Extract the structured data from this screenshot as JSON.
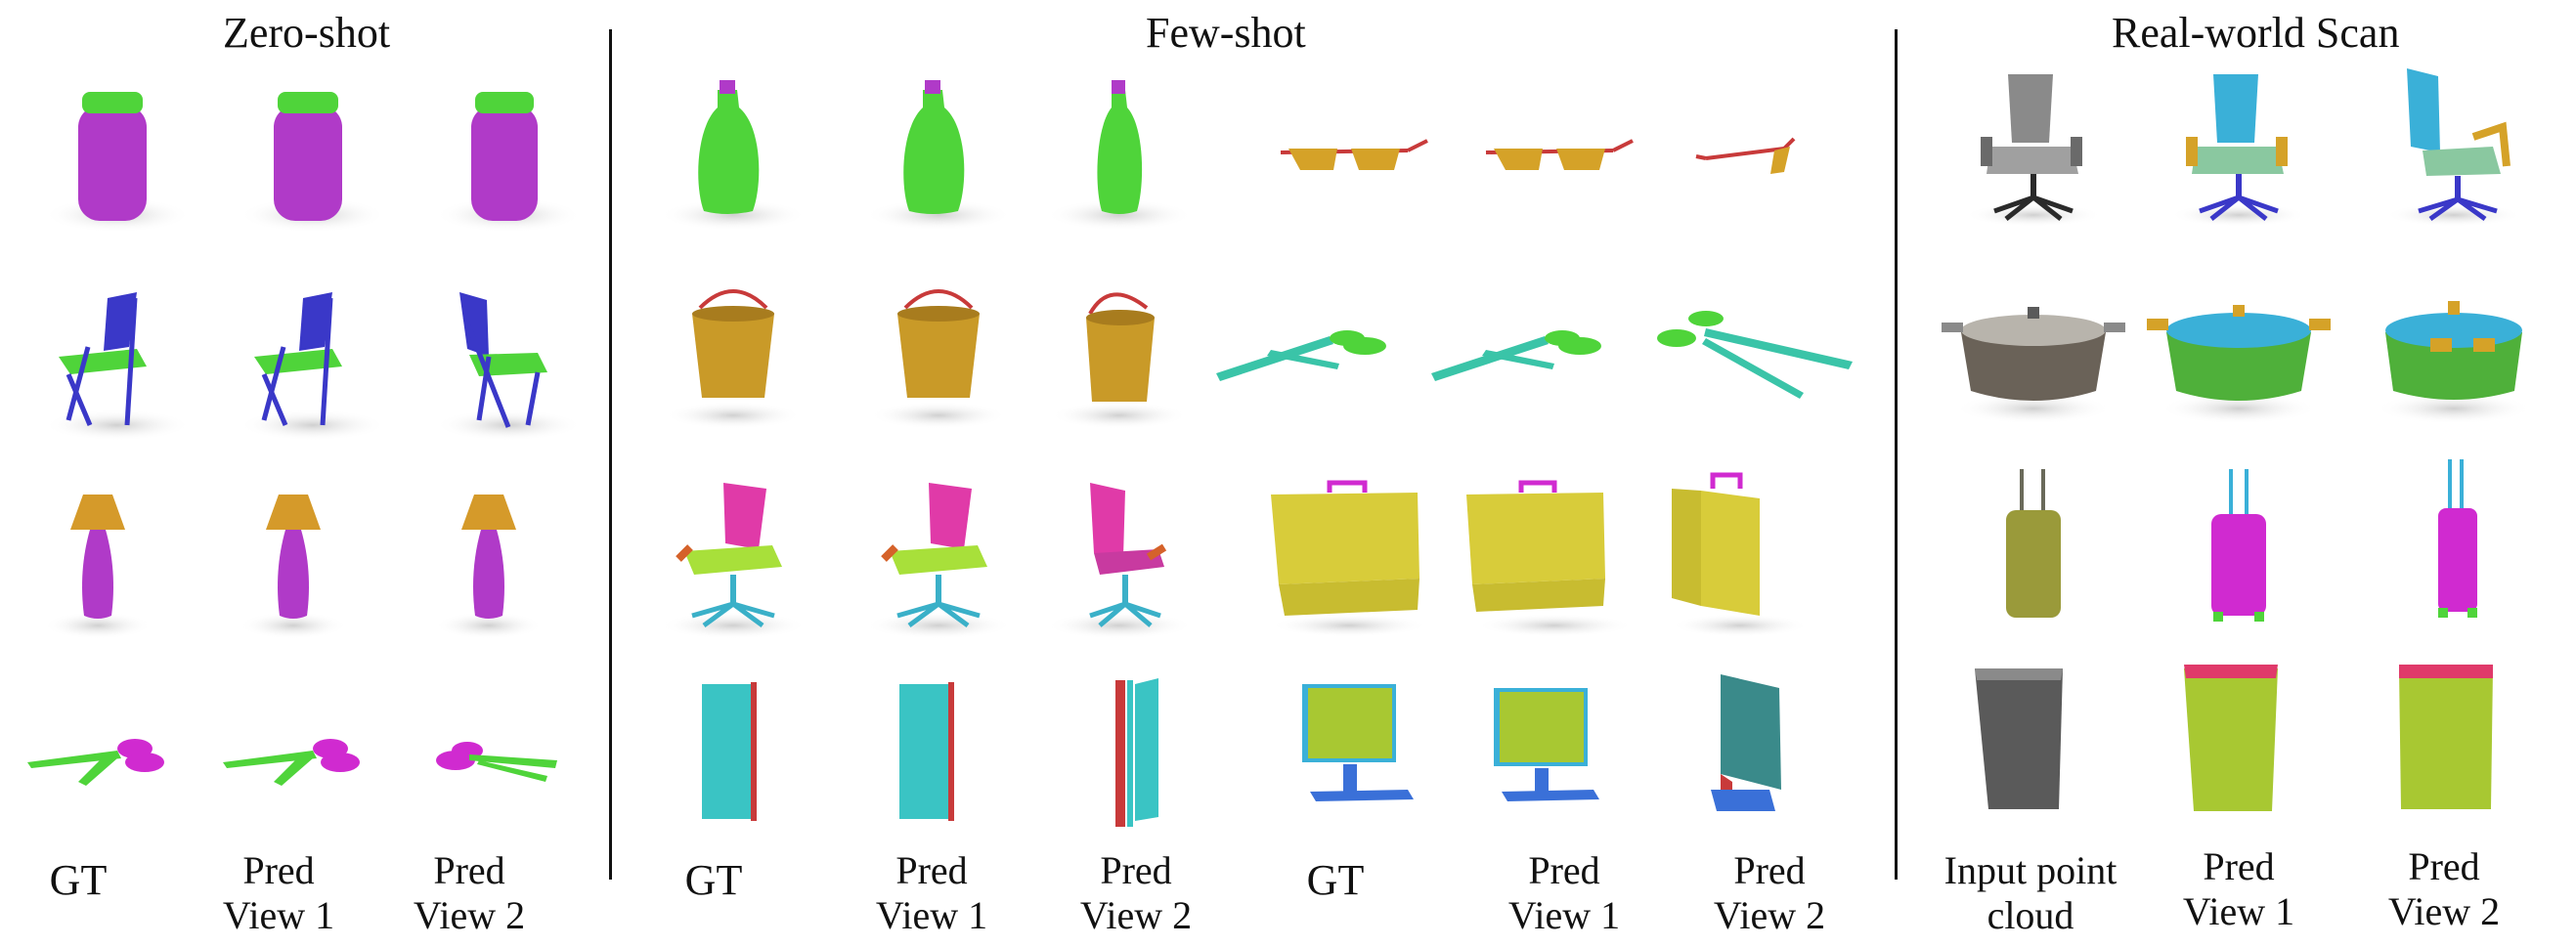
{
  "sections": [
    {
      "title": "Zero-shot"
    },
    {
      "title": "Few-shot"
    },
    {
      "title": "Real-world Scan"
    }
  ],
  "labels": {
    "gt": "GT",
    "pred_view1_l1": "Pred",
    "pred_view1_l2": "View 1",
    "pred_view2_l1": "Pred",
    "pred_view2_l2": "View 2",
    "input_l1": "Input point",
    "input_l2": "cloud"
  },
  "objects": {
    "zero_shot": [
      "jar",
      "folding-chair",
      "lamp",
      "scissors"
    ],
    "few_shot_left": [
      "bottle",
      "bucket",
      "office-chair",
      "door"
    ],
    "few_shot_right": [
      "eyeglasses",
      "scissors",
      "briefcase",
      "monitor"
    ],
    "real_world": [
      "office-chair",
      "pot",
      "suitcase",
      "trash-bin"
    ]
  },
  "colors": {
    "purple": "#b03ac8",
    "green": "#4fd43a",
    "blue": "#3a38c8",
    "orange": "#d59a2a",
    "teal": "#3bc4c4",
    "pink": "#e03aa8",
    "yellow": "#d8cc3a",
    "red": "#c83a3a",
    "lime": "#a8c832",
    "cyan": "#3ab0d8",
    "gray": "#8a8a8a",
    "olive": "#9a9a3a",
    "magenta": "#d02ad0",
    "darkgray": "#5a5a5a"
  }
}
